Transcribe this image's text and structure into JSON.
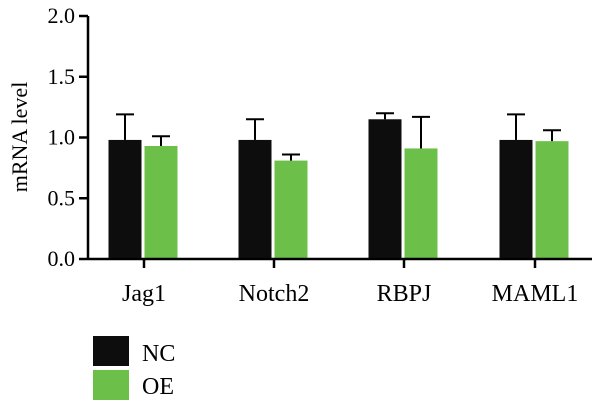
{
  "chart_data": {
    "type": "bar",
    "categories": [
      "Jag1",
      "Notch2",
      "RBPJ",
      "MAML1"
    ],
    "series": [
      {
        "name": "NC",
        "color": "#0d0d0d",
        "values": [
          0.98,
          0.98,
          1.15,
          0.98
        ],
        "errors": [
          0.21,
          0.17,
          0.05,
          0.21
        ]
      },
      {
        "name": "OE",
        "color": "#6cc04a",
        "values": [
          0.93,
          0.81,
          0.91,
          0.97
        ],
        "errors": [
          0.08,
          0.05,
          0.26,
          0.09
        ]
      }
    ],
    "ylabel": "mRNA level",
    "ylim": [
      0,
      2.0
    ],
    "yticks": [
      "0.0",
      "0.5",
      "1.0",
      "1.5",
      "2.0"
    ],
    "grid": false,
    "legend_position": "bottom-left"
  }
}
